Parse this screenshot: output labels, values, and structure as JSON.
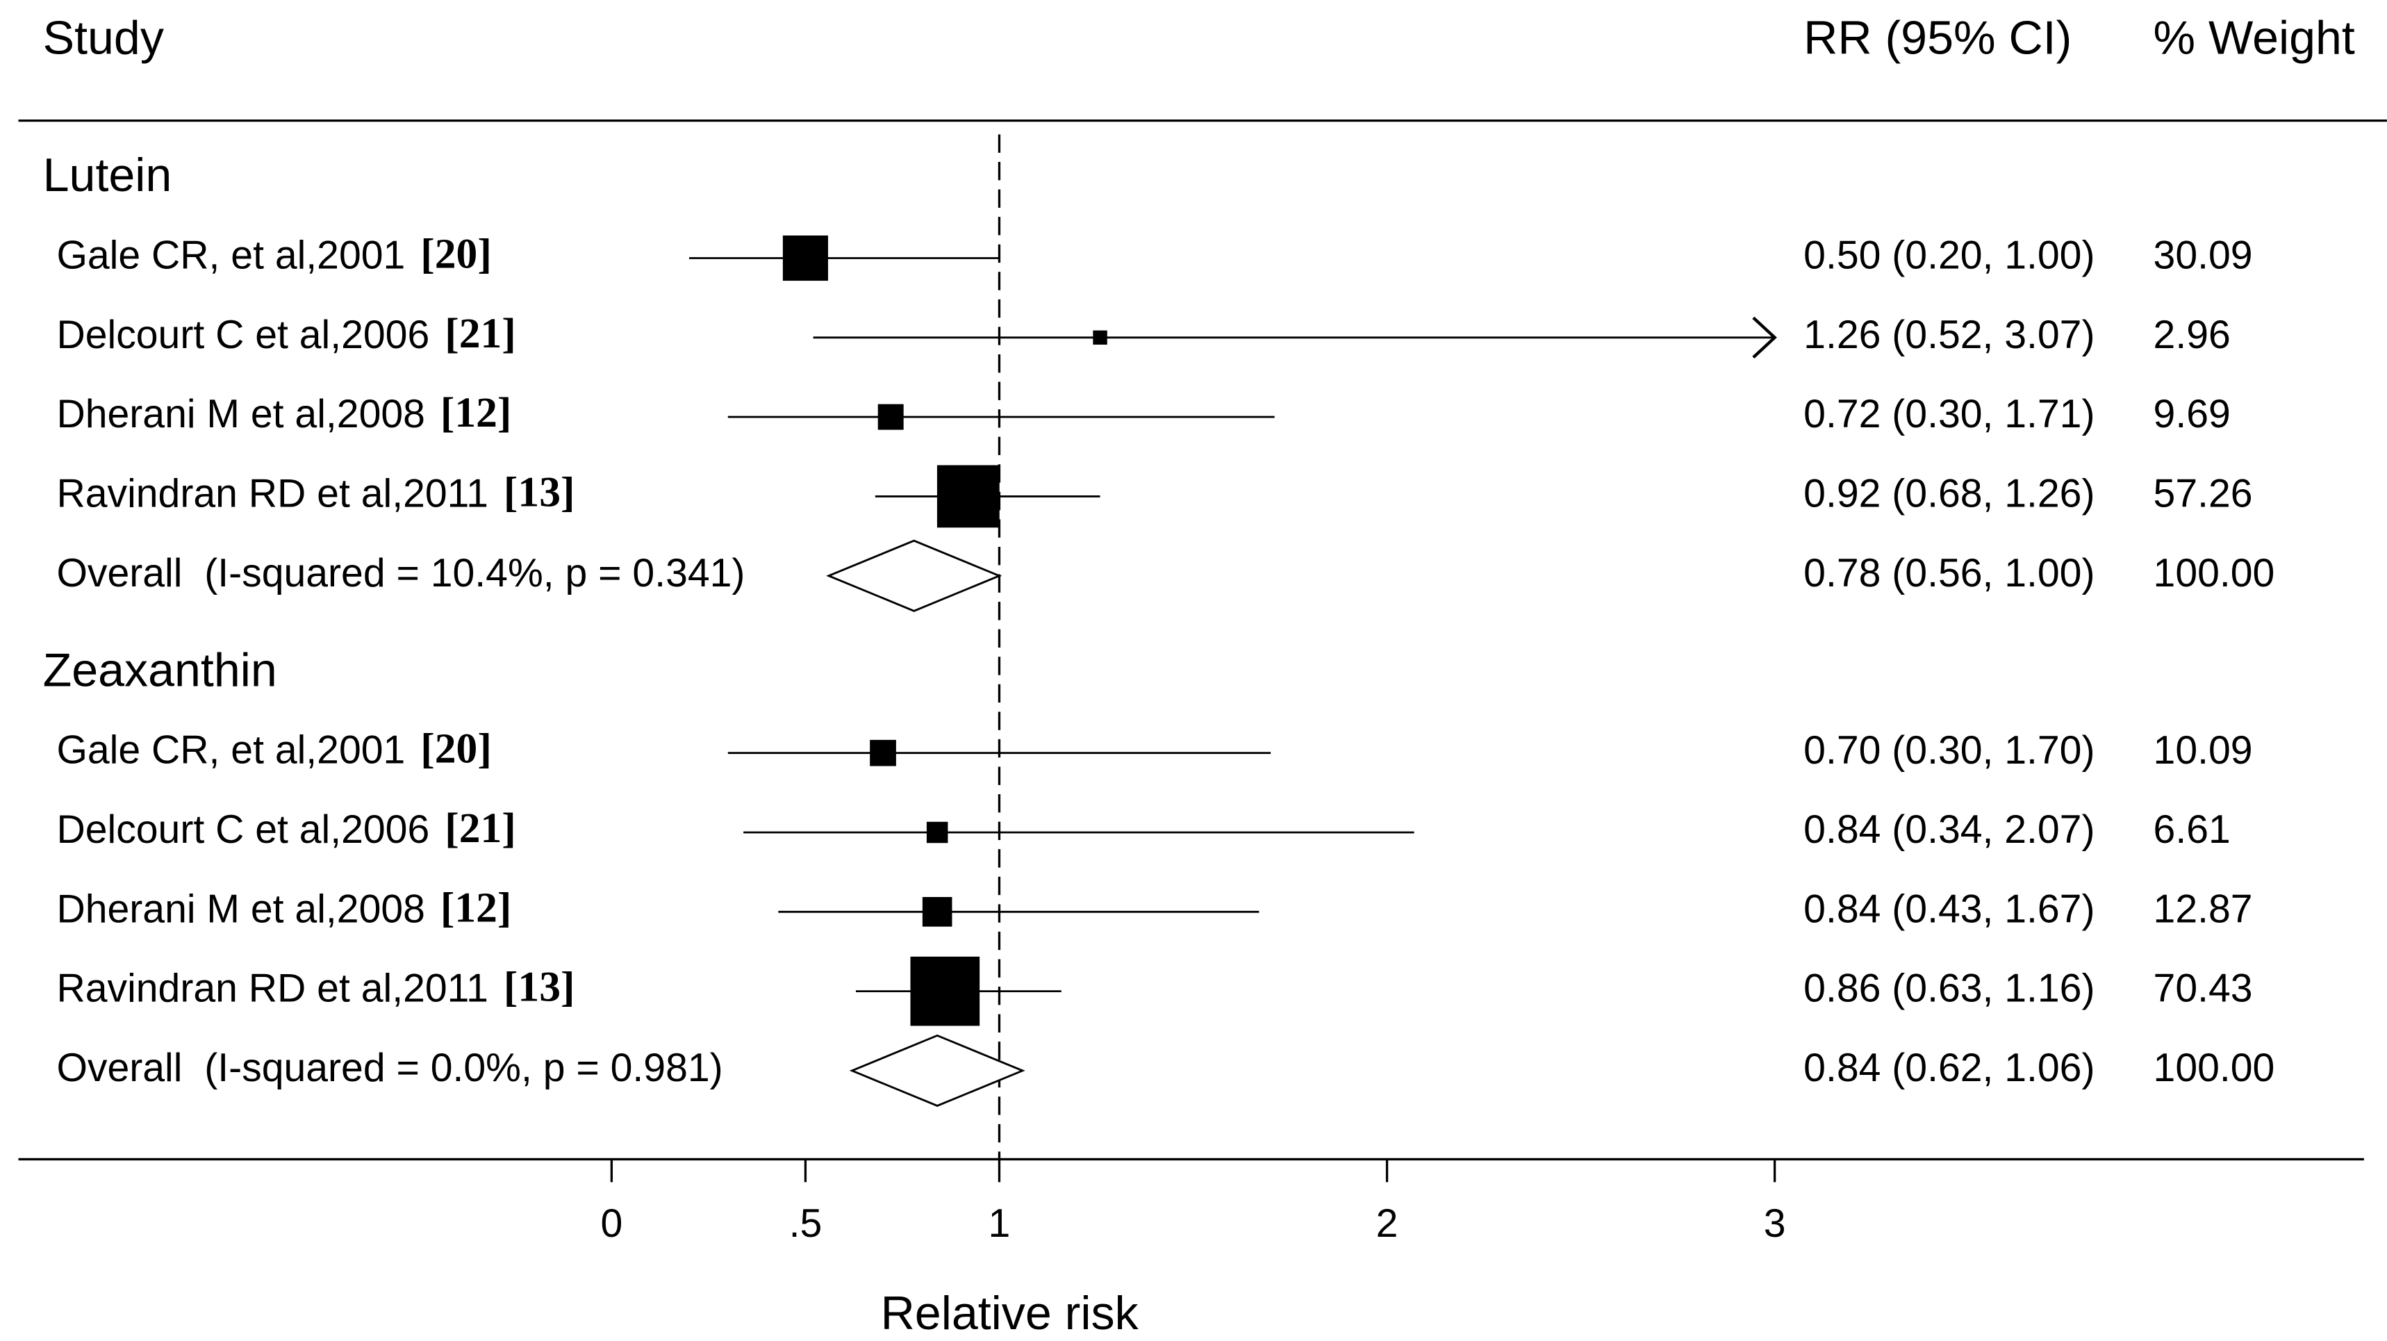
{
  "chart_data": {
    "type": "forest",
    "headers": {
      "study": "Study",
      "estimate": "RR (95% CI)",
      "weight": "% Weight"
    },
    "xlabel": "Relative risk",
    "xlim": [
      -1.53,
      4.52
    ],
    "xticks": [
      0,
      {
        "value": 0.5,
        "label": ".5"
      },
      1,
      2,
      3
    ],
    "ref_line": 1,
    "color": "#000000",
    "groups": [
      {
        "name": "Lutein",
        "studies": [
          {
            "name": "Gale CR, et al,2001",
            "ref": "[20]",
            "rr": 0.5,
            "lo": 0.2,
            "hi": 1.0,
            "estimate_label": "0.50 (0.20, 1.00)",
            "weight": 30.09
          },
          {
            "name": "Delcourt C et al,2006",
            "ref": "[21]",
            "rr": 1.26,
            "lo": 0.52,
            "hi": 3.07,
            "estimate_label": "1.26 (0.52, 3.07)",
            "weight": 2.96
          },
          {
            "name": "Dherani M et al,2008",
            "ref": "[12]",
            "rr": 0.72,
            "lo": 0.3,
            "hi": 1.71,
            "estimate_label": "0.72 (0.30, 1.71)",
            "weight": 9.69
          },
          {
            "name": "Ravindran RD et al,2011",
            "ref": "[13]",
            "rr": 0.92,
            "lo": 0.68,
            "hi": 1.26,
            "estimate_label": "0.92 (0.68, 1.26)",
            "weight": 57.26
          }
        ],
        "overall": {
          "label": "Overall  (I-squared = 10.4%, p = 0.341)",
          "rr": 0.78,
          "lo": 0.56,
          "hi": 1.0,
          "estimate_label": "0.78 (0.56, 1.00)",
          "weight": {
            "value": 100,
            "label": "100.00"
          }
        }
      },
      {
        "name": "Zeaxanthin",
        "studies": [
          {
            "name": "Gale CR, et al,2001",
            "ref": "[20]",
            "rr": 0.7,
            "lo": 0.3,
            "hi": 1.7,
            "estimate_label": "0.70 (0.30, 1.70)",
            "weight": 10.09
          },
          {
            "name": "Delcourt C et al,2006",
            "ref": "[21]",
            "rr": 0.84,
            "lo": 0.34,
            "hi": 2.07,
            "estimate_label": "0.84 (0.34, 2.07)",
            "weight": 6.61
          },
          {
            "name": "Dherani M et al,2008",
            "ref": "[12]",
            "rr": 0.84,
            "lo": 0.43,
            "hi": 1.67,
            "estimate_label": "0.84 (0.43, 1.67)",
            "weight": 12.87
          },
          {
            "name": "Ravindran RD et al,2011",
            "ref": "[13]",
            "rr": 0.86,
            "lo": 0.63,
            "hi": 1.16,
            "estimate_label": "0.86 (0.63, 1.16)",
            "weight": 70.43
          }
        ],
        "overall": {
          "label": "Overall  (I-squared = 0.0%, p = 0.981)",
          "rr": 0.84,
          "lo": 0.62,
          "hi": 1.06,
          "estimate_label": "0.84 (0.62, 1.06)",
          "weight": {
            "value": 100,
            "label": "100.00"
          }
        }
      }
    ]
  }
}
